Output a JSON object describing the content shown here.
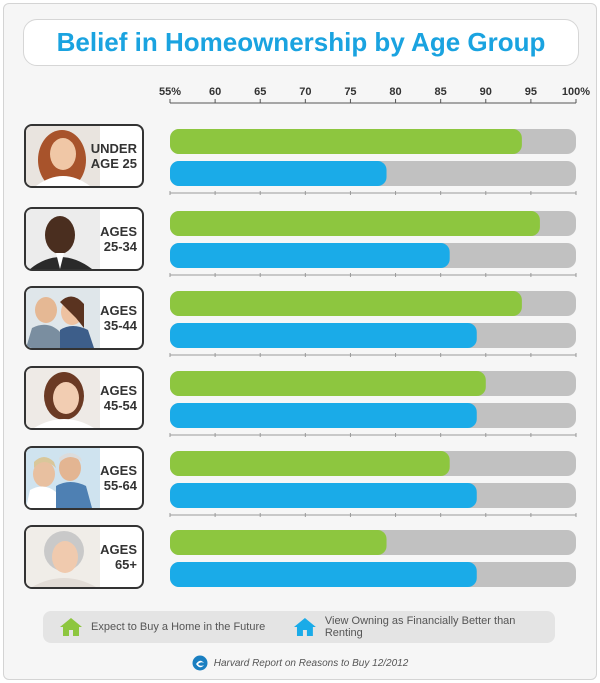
{
  "title": "Belief in Homeownership by Age Group",
  "legend": {
    "expect": "Expect to Buy a Home in the Future",
    "better": "View Owning as Financially Better than Renting"
  },
  "source": "Harvard Report on Reasons to Buy 12/2012",
  "colors": {
    "green": "#8dc63f",
    "blue": "#1aabe8",
    "track": "#c1c1c1",
    "title": "#1aa3e0"
  },
  "icons": {
    "legend_expect": "house-icon",
    "legend_better": "house-icon",
    "source": "globe-logo-icon"
  },
  "age_groups": [
    {
      "line1": "UNDER",
      "line2": "AGE 25"
    },
    {
      "line1": "AGES",
      "line2": "25-34"
    },
    {
      "line1": "AGES",
      "line2": "35-44"
    },
    {
      "line1": "AGES",
      "line2": "45-54"
    },
    {
      "line1": "AGES",
      "line2": "55-64"
    },
    {
      "line1": "AGES",
      "line2": "65+"
    }
  ],
  "chart_data": {
    "type": "bar",
    "orientation": "horizontal",
    "categories": [
      "UNDER AGE 25",
      "AGES 25-34",
      "AGES 35-44",
      "AGES 45-54",
      "AGES 55-64",
      "AGES 65+"
    ],
    "xlim": [
      55,
      100
    ],
    "ticks": [
      "55%",
      "60",
      "65",
      "70",
      "75",
      "80",
      "85",
      "90",
      "95",
      "100%"
    ],
    "grid": false,
    "legend_position": "bottom",
    "series": [
      {
        "name": "Expect to Buy a Home in the Future",
        "values": [
          94,
          96,
          94,
          90,
          86,
          79
        ]
      },
      {
        "name": "View Owning as Financially Better than Renting",
        "values": [
          79,
          86,
          89,
          89,
          89,
          89
        ]
      }
    ]
  }
}
